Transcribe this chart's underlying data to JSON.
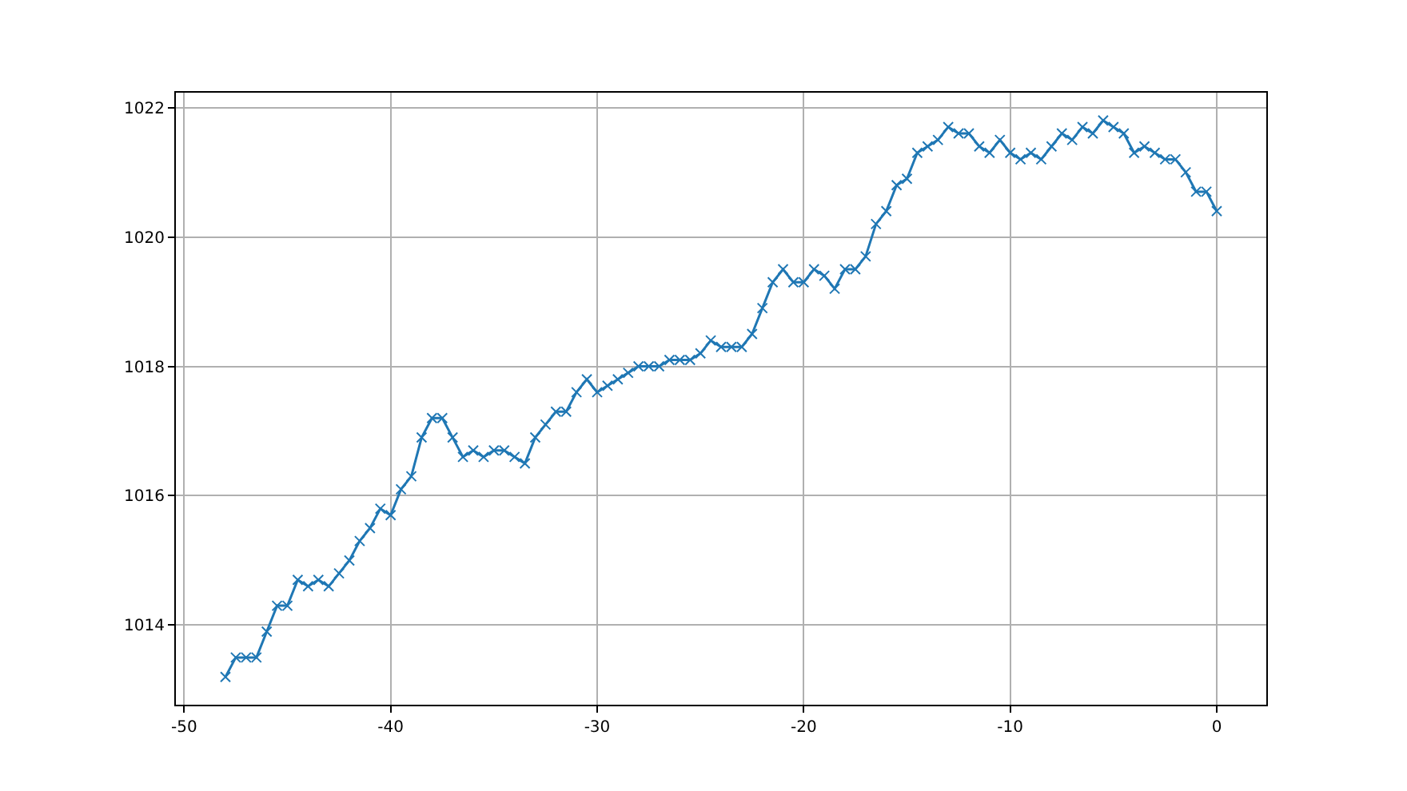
{
  "chart_data": {
    "type": "line",
    "marker": "cross",
    "line_style": "solid",
    "grid": true,
    "x": [
      -48,
      -47.5,
      -47,
      -46.5,
      -46,
      -45.5,
      -45,
      -44.5,
      -44,
      -43.5,
      -43,
      -42.5,
      -42,
      -41.5,
      -41,
      -40.5,
      -40,
      -39.5,
      -39,
      -38.5,
      -38,
      -37.5,
      -37,
      -36.5,
      -36,
      -35.5,
      -35,
      -34.5,
      -34,
      -33.5,
      -33,
      -32.5,
      -32,
      -31.5,
      -31,
      -30.5,
      -30,
      -29.5,
      -29,
      -28.5,
      -28,
      -27.5,
      -27,
      -26.5,
      -26,
      -25.5,
      -25,
      -24.5,
      -24,
      -23.5,
      -23,
      -22.5,
      -22,
      -21.5,
      -21,
      -20.5,
      -20,
      -19.5,
      -19,
      -18.5,
      -18,
      -17.5,
      -17,
      -16.5,
      -16,
      -15.5,
      -15,
      -14.5,
      -14,
      -13.5,
      -13,
      -12.5,
      -12,
      -11.5,
      -11,
      -10.5,
      -10,
      -9.5,
      -9,
      -8.5,
      -8,
      -7.5,
      -7,
      -6.5,
      -6,
      -5.5,
      -5,
      -4.5,
      -4,
      -3.5,
      -3,
      -2.5,
      -2,
      -1.5,
      -1,
      -0.5,
      0
    ],
    "series": [
      {
        "color": "#1f77b4",
        "values": [
          1013.2,
          1013.5,
          1013.5,
          1013.5,
          1013.9,
          1014.3,
          1014.3,
          1014.7,
          1014.6,
          1014.7,
          1014.6,
          1014.8,
          1015.0,
          1015.3,
          1015.5,
          1015.8,
          1015.7,
          1016.1,
          1016.3,
          1016.9,
          1017.2,
          1017.2,
          1016.9,
          1016.6,
          1016.7,
          1016.6,
          1016.7,
          1016.7,
          1016.6,
          1016.5,
          1016.9,
          1017.1,
          1017.3,
          1017.3,
          1017.6,
          1017.8,
          1017.6,
          1017.7,
          1017.8,
          1017.9,
          1018.0,
          1018.0,
          1018.0,
          1018.1,
          1018.1,
          1018.1,
          1018.2,
          1018.4,
          1018.3,
          1018.3,
          1018.3,
          1018.5,
          1018.9,
          1019.3,
          1019.5,
          1019.3,
          1019.3,
          1019.5,
          1019.4,
          1019.2,
          1019.5,
          1019.5,
          1019.7,
          1020.2,
          1020.4,
          1020.8,
          1020.9,
          1021.3,
          1021.4,
          1021.5,
          1021.7,
          1021.6,
          1021.6,
          1021.4,
          1021.3,
          1021.5,
          1021.3,
          1021.2,
          1021.3,
          1021.2,
          1021.4,
          1021.6,
          1021.5,
          1021.7,
          1021.6,
          1021.8,
          1021.7,
          1021.6,
          1021.3,
          1021.4,
          1021.3,
          1021.2,
          1021.2,
          1021.0,
          1020.7,
          1020.7,
          1020.4
        ]
      }
    ],
    "xlim": [
      -50.4,
      2.4
    ],
    "xticks": [
      -50,
      -40,
      -30,
      -20,
      -10,
      0
    ],
    "ylim": [
      1012.77,
      1022.23
    ],
    "yticks": [
      1014,
      1016,
      1018,
      1020,
      1022
    ]
  }
}
